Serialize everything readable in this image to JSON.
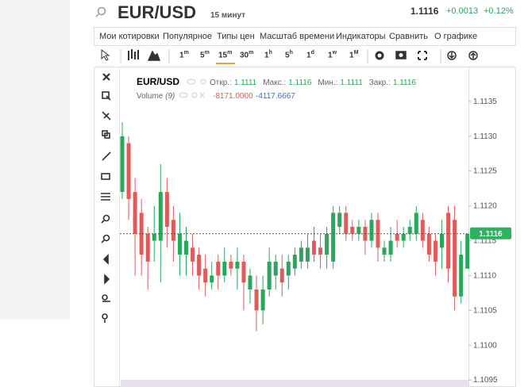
{
  "header": {
    "symbol": "EUR/USD",
    "interval": "15 минут",
    "price": "1.1116",
    "change": "+0.0013",
    "change_pct": "+0.12%"
  },
  "menu": [
    "Мои котировки",
    "Популярное",
    "Типы цен",
    "Масштаб времени",
    "Индикаторы",
    "Сравнить",
    "О графике"
  ],
  "timeframes": [
    {
      "value": "1",
      "unit": "m"
    },
    {
      "value": "5",
      "unit": "m"
    },
    {
      "value": "15",
      "unit": "m"
    },
    {
      "value": "30",
      "unit": "m"
    },
    {
      "value": "1",
      "unit": "h"
    },
    {
      "value": "5",
      "unit": "h"
    },
    {
      "value": "1",
      "unit": "d"
    },
    {
      "value": "1",
      "unit": "w"
    },
    {
      "value": "1",
      "unit": "M"
    }
  ],
  "active_timeframe": 2,
  "legend": {
    "symbol": "EUR/USD",
    "fields": [
      {
        "label": "Откр.:",
        "value": "1.1111"
      },
      {
        "label": "Макс.:",
        "value": "1.1116"
      },
      {
        "label": "Мин.:",
        "value": "1.1111"
      },
      {
        "label": "Закр.:",
        "value": "1.1116"
      }
    ]
  },
  "volume": {
    "label": "Volume",
    "param": "(9)",
    "values": [
      "-8171.0000",
      "-4117.6667"
    ]
  },
  "chart_data": {
    "type": "candlestick",
    "open": [
      1.1122,
      1.1129,
      1.1122,
      1.1119,
      1.1116,
      1.1115,
      1.1115,
      1.1122,
      1.1118,
      1.1113,
      1.1113,
      1.1114,
      1.1113,
      1.1111,
      1.1109,
      1.1112,
      1.111,
      1.1112,
      1.1111,
      1.1112,
      1.1108,
      1.1108,
      1.1105,
      1.1108,
      1.111,
      1.1111,
      1.111,
      1.1111,
      1.1112,
      1.1112,
      1.1115,
      1.1114,
      1.1113,
      1.1112,
      1.1117,
      1.1119,
      1.1117,
      1.1116,
      1.1117,
      1.1115,
      1.1118,
      1.1113,
      1.1113,
      1.1116,
      1.1115,
      1.1116,
      1.1116,
      1.1118,
      1.1116,
      1.1115,
      1.1114,
      1.1119,
      1.1118,
      1.1107,
      1.1111
    ],
    "high": [
      1.1132,
      1.113,
      1.1124,
      1.1121,
      1.1117,
      1.112,
      1.1126,
      1.1124,
      1.112,
      1.1119,
      1.1117,
      1.1116,
      1.1114,
      1.1113,
      1.1112,
      1.1113,
      1.1114,
      1.1113,
      1.1114,
      1.1113,
      1.1111,
      1.111,
      1.111,
      1.1114,
      1.1113,
      1.1113,
      1.1113,
      1.1114,
      1.1115,
      1.1116,
      1.1117,
      1.1116,
      1.1117,
      1.112,
      1.112,
      1.112,
      1.1118,
      1.1118,
      1.1118,
      1.1119,
      1.1119,
      1.1115,
      1.1117,
      1.1118,
      1.1117,
      1.1118,
      1.112,
      1.1119,
      1.1117,
      1.1116,
      1.1118,
      1.112,
      1.112,
      1.1115,
      1.1116
    ],
    "low": [
      1.1121,
      1.1118,
      1.111,
      1.111,
      1.1108,
      1.1112,
      1.1109,
      1.1114,
      1.1112,
      1.111,
      1.111,
      1.111,
      1.1108,
      1.1107,
      1.1108,
      1.1108,
      1.1109,
      1.111,
      1.1108,
      1.1105,
      1.1106,
      1.1102,
      1.1103,
      1.1107,
      1.1108,
      1.1107,
      1.1108,
      1.111,
      1.1111,
      1.1111,
      1.1112,
      1.1111,
      1.1111,
      1.1111,
      1.1116,
      1.1115,
      1.1115,
      1.1115,
      1.1113,
      1.1114,
      1.1112,
      1.1112,
      1.1112,
      1.1114,
      1.1114,
      1.1115,
      1.1115,
      1.1114,
      1.1112,
      1.111,
      1.1111,
      1.1109,
      1.1105,
      1.1106,
      1.1111
    ],
    "close": [
      1.113,
      1.1121,
      1.1116,
      1.1113,
      1.1112,
      1.1116,
      1.1122,
      1.1117,
      1.1115,
      1.1116,
      1.1115,
      1.1112,
      1.111,
      1.1109,
      1.111,
      1.111,
      1.1112,
      1.1111,
      1.1112,
      1.1109,
      1.111,
      1.1105,
      1.1108,
      1.1112,
      1.1112,
      1.1109,
      1.1112,
      1.1113,
      1.1114,
      1.1114,
      1.1113,
      1.1113,
      1.1116,
      1.1119,
      1.1119,
      1.1116,
      1.1116,
      1.1117,
      1.1115,
      1.1118,
      1.1114,
      1.1114,
      1.1115,
      1.1115,
      1.1116,
      1.1117,
      1.1119,
      1.1115,
      1.1113,
      1.1112,
      1.1116,
      1.1111,
      1.1107,
      1.1113,
      1.1116
    ],
    "ylim": [
      1.1094,
      1.114
    ],
    "yticks": [
      1.1135,
      {
        "value": 1.113,
        "label": "1.1130"
      },
      1.1125,
      {
        "value": 1.112,
        "label": "1.1120"
      },
      1.1115,
      {
        "value": 1.111,
        "label": "1.1110"
      },
      1.1105,
      {
        "value": 1.11,
        "label": "1.1100"
      },
      1.1095
    ],
    "last_price": 1.1116,
    "up_color": "#27a85a",
    "down_color": "#e05a5a"
  }
}
